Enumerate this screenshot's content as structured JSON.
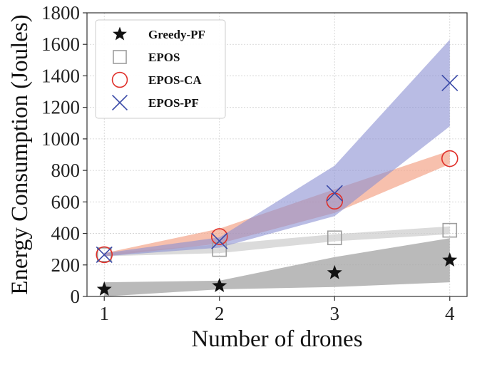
{
  "chart_data": {
    "type": "line",
    "title": "",
    "xlabel": "Number of drones",
    "ylabel": "Energy Consumption (Joules)",
    "x": [
      1,
      2,
      3,
      4
    ],
    "xlim": [
      0.85,
      4.15
    ],
    "ylim": [
      0,
      1800
    ],
    "xticks": [
      1,
      2,
      3,
      4
    ],
    "yticks": [
      0,
      200,
      400,
      600,
      800,
      1000,
      1200,
      1400,
      1600,
      1800
    ],
    "grid": true,
    "legend_position": "top-left",
    "series": [
      {
        "name": "Greedy-PF",
        "marker": "star",
        "color": "#111111",
        "band_color": "#a9a9a9",
        "values": [
          45,
          68,
          150,
          230
        ],
        "band_low": [
          0,
          45,
          60,
          90
        ],
        "band_high": [
          90,
          100,
          250,
          370
        ]
      },
      {
        "name": "EPOS",
        "marker": "square",
        "color": "#9e9e9e",
        "band_color": "#cfcfcf",
        "values": [
          265,
          298,
          372,
          420
        ],
        "band_low": [
          255,
          275,
          350,
          395
        ],
        "band_high": [
          275,
          330,
          395,
          445
        ]
      },
      {
        "name": "EPOS-CA",
        "marker": "circle",
        "color": "#e0302a",
        "band_color": "#f4a58a",
        "values": [
          265,
          380,
          605,
          875
        ],
        "band_low": [
          255,
          335,
          530,
          840
        ],
        "band_high": [
          275,
          430,
          680,
          925
        ]
      },
      {
        "name": "EPOS-PF",
        "marker": "x",
        "color": "#3a4aa8",
        "band_color": "#8a8fd2",
        "values": [
          265,
          352,
          655,
          1355
        ],
        "band_low": [
          255,
          310,
          510,
          1080
        ],
        "band_high": [
          275,
          375,
          830,
          1630
        ]
      }
    ]
  }
}
